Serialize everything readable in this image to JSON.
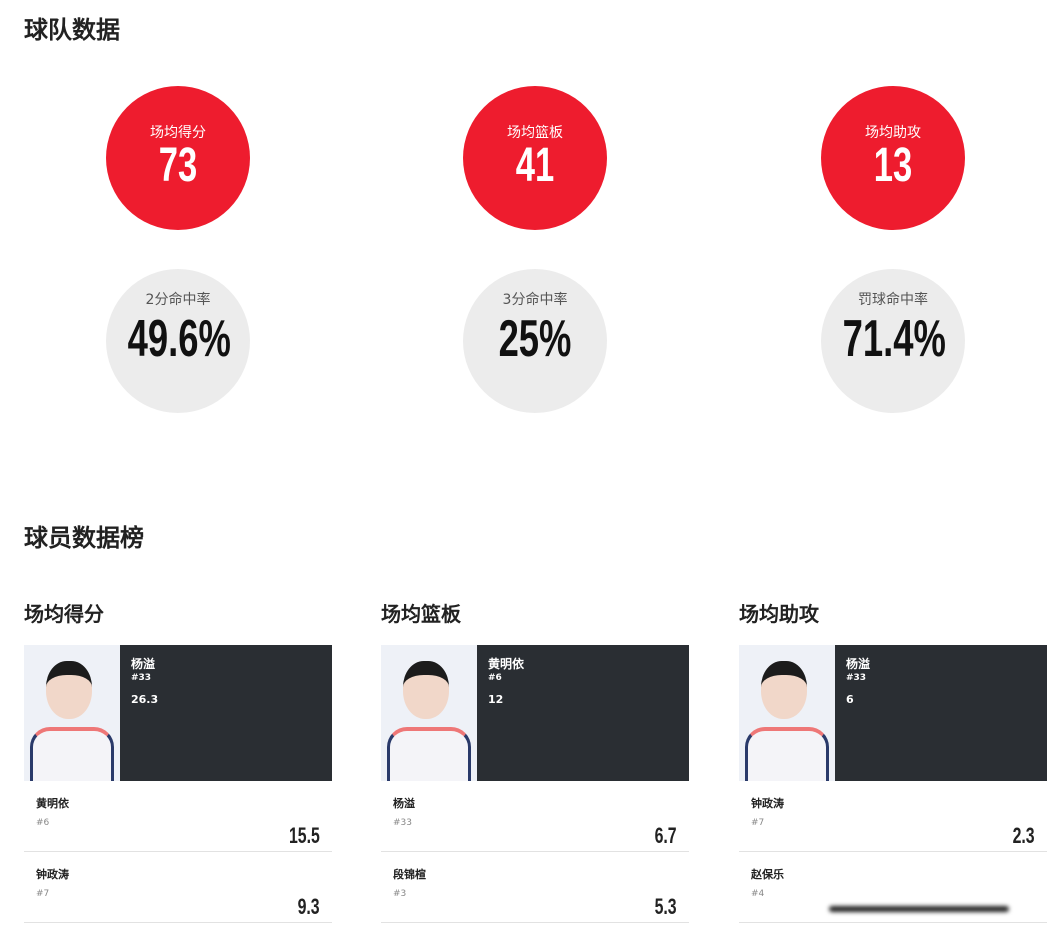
{
  "team": {
    "title": "球队数据",
    "main": [
      {
        "label": "场均得分",
        "value": "73"
      },
      {
        "label": "场均篮板",
        "value": "41"
      },
      {
        "label": "场均助攻",
        "value": "13"
      }
    ],
    "pct": [
      {
        "label": "2分命中率",
        "value": "49.6%"
      },
      {
        "label": "3分命中率",
        "value": "25%"
      },
      {
        "label": "罚球命中率",
        "value": "71.4%"
      }
    ]
  },
  "players": {
    "title": "球员数据榜",
    "boards": [
      {
        "title": "场均得分",
        "leader": {
          "name": "杨溢",
          "number": "#33",
          "value": "26.3"
        },
        "rows": [
          {
            "name": "黄明依",
            "number": "#6",
            "value": "15.5"
          },
          {
            "name": "钟政涛",
            "number": "#7",
            "value": "9.3"
          }
        ]
      },
      {
        "title": "场均篮板",
        "leader": {
          "name": "黄明依",
          "number": "#6",
          "value": "12"
        },
        "rows": [
          {
            "name": "杨溢",
            "number": "#33",
            "value": "6.7"
          },
          {
            "name": "段锦楦",
            "number": "#3",
            "value": "5.3"
          }
        ]
      },
      {
        "title": "场均助攻",
        "leader": {
          "name": "杨溢",
          "number": "#33",
          "value": "6"
        },
        "rows": [
          {
            "name": "钟政涛",
            "number": "#7",
            "value": "2.3"
          },
          {
            "name": "赵保乐",
            "number": "#4",
            "value": null
          }
        ]
      }
    ]
  },
  "colors": {
    "accent": "#ee1c2e",
    "card_dark": "#2a2e33"
  }
}
